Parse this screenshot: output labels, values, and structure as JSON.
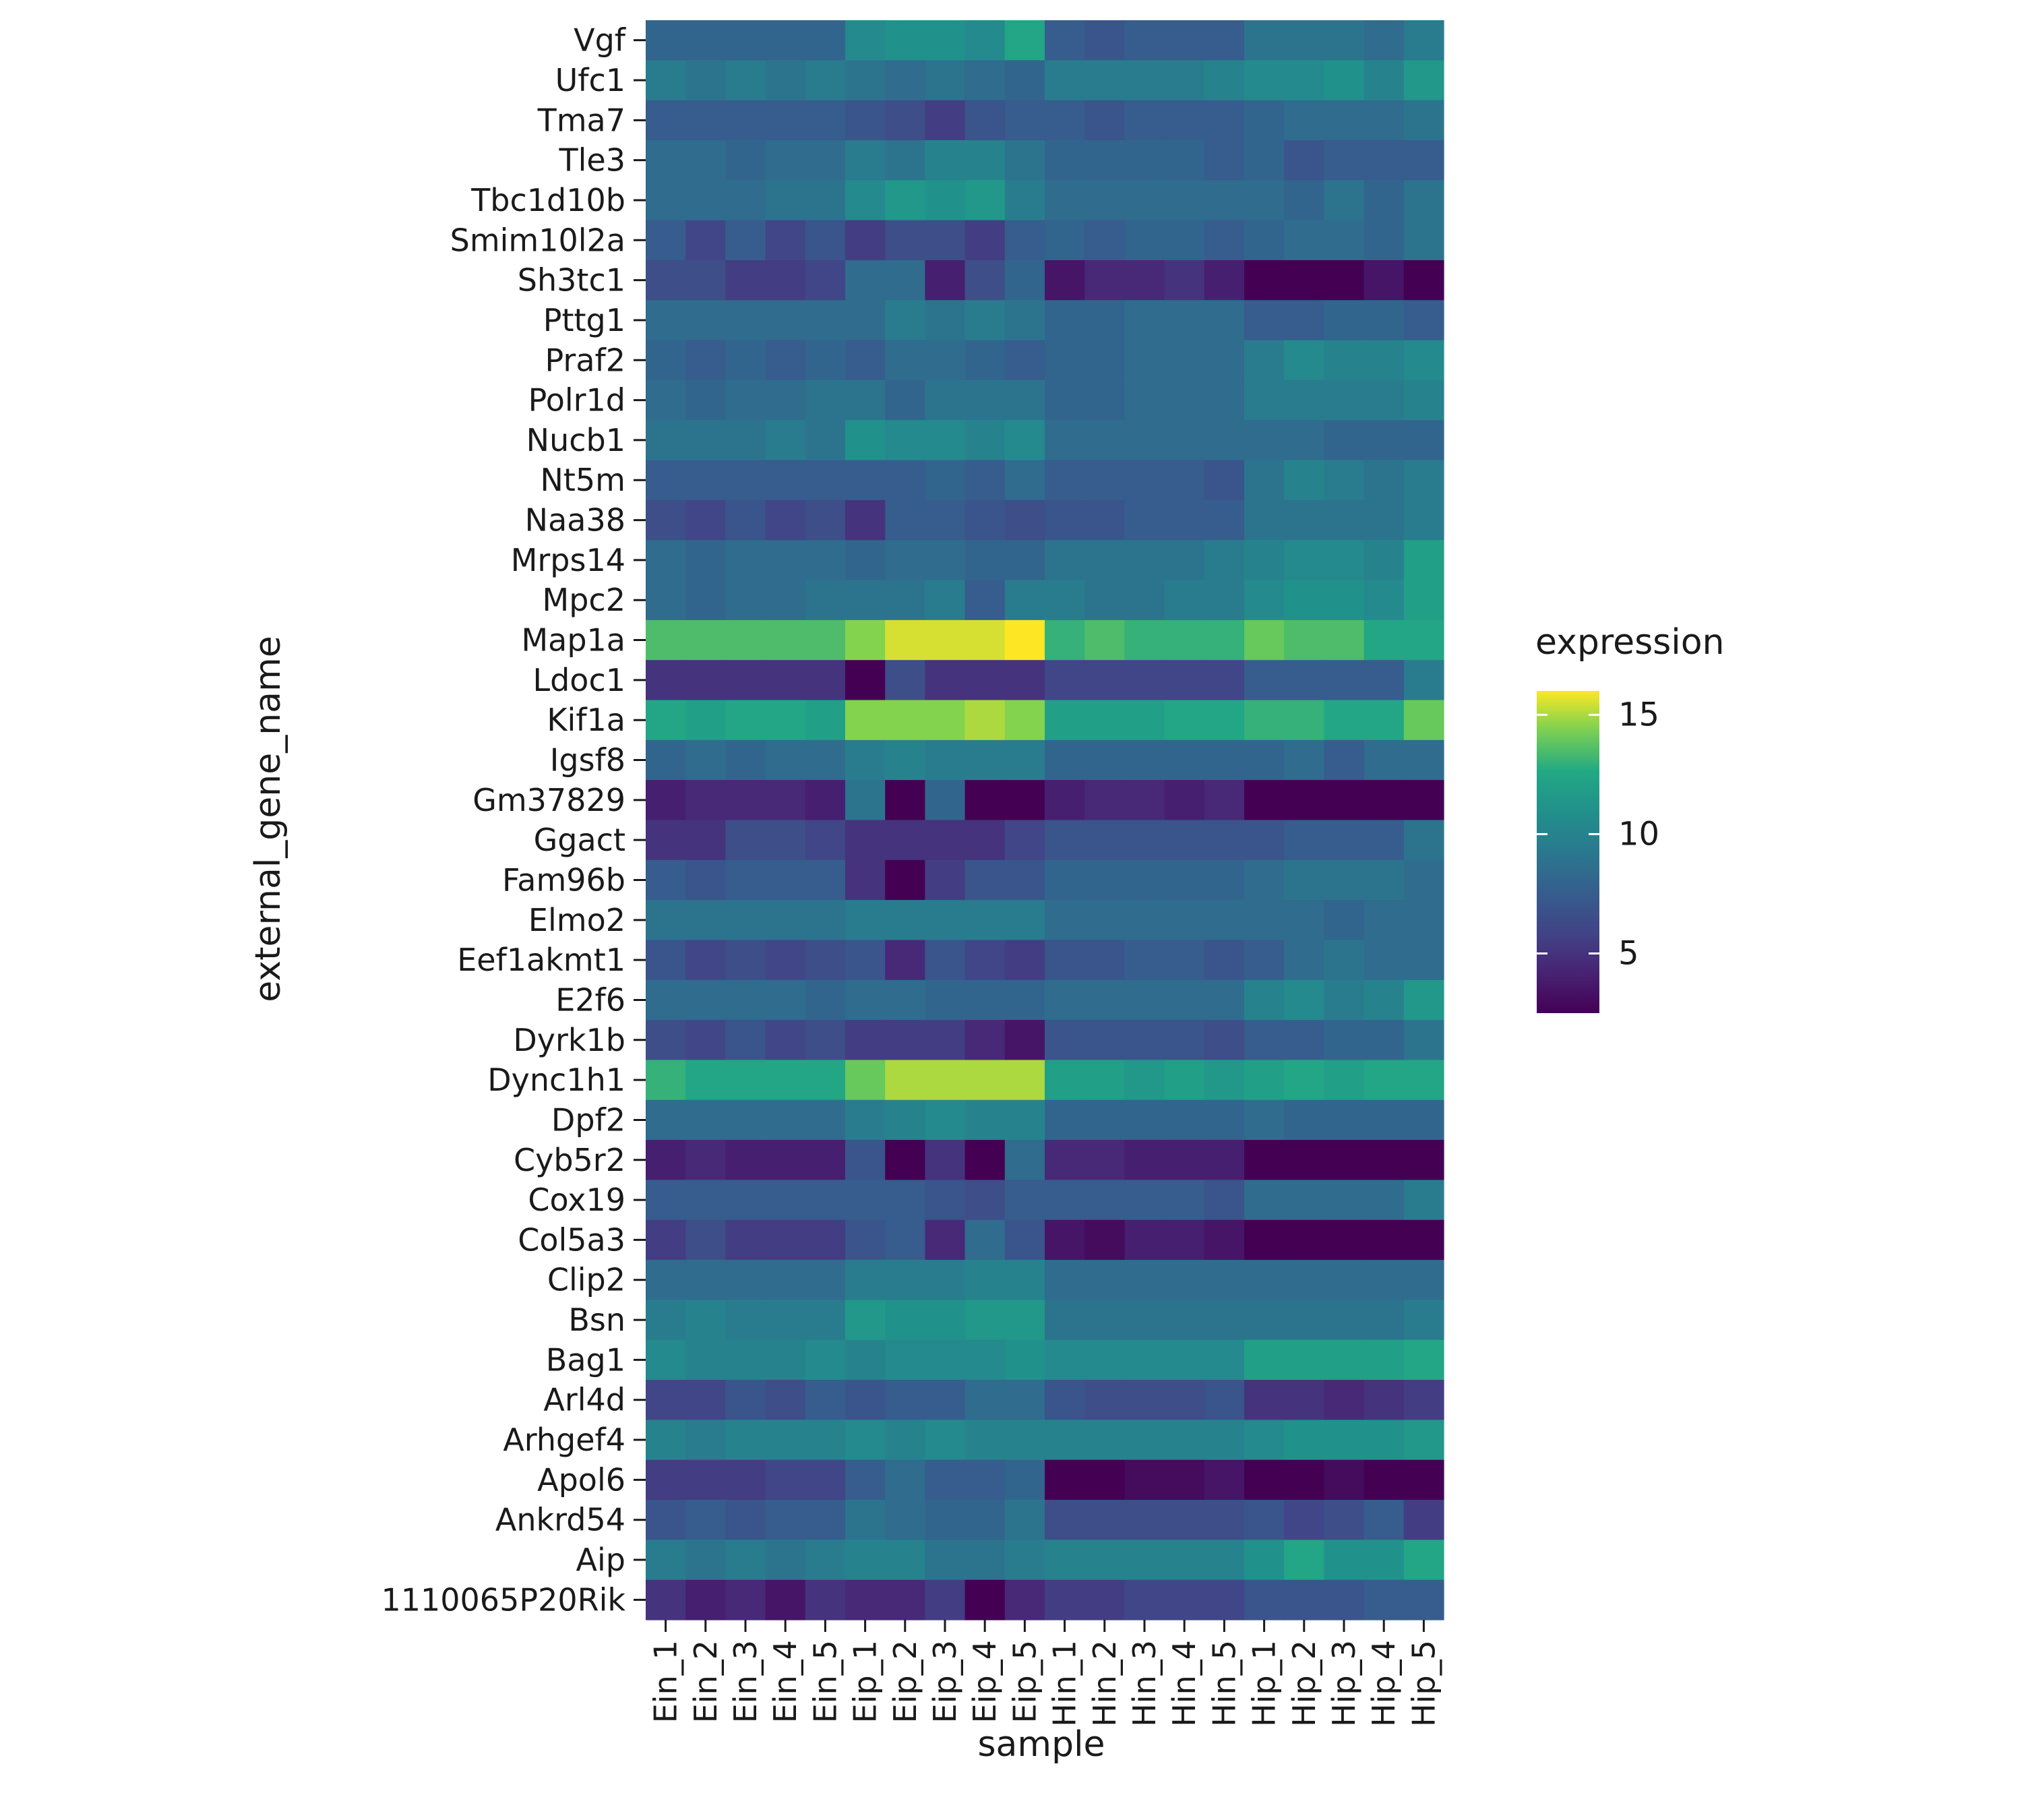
{
  "chart_data": {
    "type": "heatmap",
    "xlabel": "sample",
    "ylabel": "external_gene_name",
    "columns": [
      "Ein_1",
      "Ein_2",
      "Ein_3",
      "Ein_4",
      "Ein_5",
      "Eip_1",
      "Eip_2",
      "Eip_3",
      "Eip_4",
      "Eip_5",
      "Hin_1",
      "Hin_2",
      "Hin_3",
      "Hin_4",
      "Hin_5",
      "Hip_1",
      "Hip_2",
      "Hip_3",
      "Hip_4",
      "Hip_5"
    ],
    "rows": [
      "Vgf",
      "Ufc1",
      "Tma7",
      "Tle3",
      "Tbc1d10b",
      "Smim10l2a",
      "Sh3tc1",
      "Pttg1",
      "Praf2",
      "Polr1d",
      "Nucb1",
      "Nt5m",
      "Naa38",
      "Mrps14",
      "Mpc2",
      "Map1a",
      "Ldoc1",
      "Kif1a",
      "Igsf8",
      "Gm37829",
      "Ggact",
      "Fam96b",
      "Elmo2",
      "Eef1akmt1",
      "E2f6",
      "Dyrk1b",
      "Dync1h1",
      "Dpf2",
      "Cyb5r2",
      "Cox19",
      "Col5a3",
      "Clip2",
      "Bsn",
      "Bag1",
      "Arl4d",
      "Arhgef4",
      "Apol6",
      "Ankrd54",
      "Aip",
      "1110065P20Rik"
    ],
    "values": [
      [
        8.0,
        8.0,
        8.0,
        8.0,
        8.0,
        10.5,
        11.0,
        11.0,
        10.5,
        12.5,
        7.5,
        7.0,
        7.5,
        7.5,
        7.5,
        9.0,
        9.0,
        9.0,
        8.5,
        9.5
      ],
      [
        9.5,
        9.0,
        9.5,
        9.0,
        9.5,
        9.0,
        8.5,
        9.0,
        8.5,
        8.0,
        9.5,
        9.5,
        9.5,
        9.5,
        10.0,
        10.5,
        10.5,
        11.0,
        10.0,
        11.5
      ],
      [
        7.5,
        7.5,
        7.5,
        7.5,
        7.5,
        7.0,
        6.5,
        5.5,
        7.0,
        7.5,
        7.5,
        7.0,
        7.5,
        7.5,
        7.5,
        8.0,
        8.5,
        8.5,
        8.5,
        9.0
      ],
      [
        8.5,
        8.5,
        8.0,
        8.5,
        8.5,
        9.5,
        9.0,
        10.0,
        10.0,
        9.0,
        8.0,
        8.0,
        8.0,
        8.0,
        7.5,
        8.0,
        7.0,
        7.5,
        7.5,
        7.5
      ],
      [
        8.5,
        8.5,
        8.5,
        9.0,
        9.0,
        10.5,
        11.5,
        11.0,
        11.5,
        9.5,
        8.5,
        8.5,
        8.5,
        8.5,
        8.5,
        8.5,
        8.0,
        9.0,
        8.0,
        9.0
      ],
      [
        7.5,
        6.0,
        7.5,
        6.0,
        7.0,
        5.5,
        6.5,
        6.5,
        5.5,
        7.5,
        8.0,
        7.5,
        8.0,
        8.0,
        7.5,
        8.0,
        8.5,
        8.5,
        8.0,
        9.0
      ],
      [
        6.5,
        6.5,
        5.5,
        5.5,
        6.0,
        8.5,
        8.5,
        4.0,
        6.5,
        8.0,
        3.5,
        4.5,
        4.5,
        5.0,
        4.0,
        2.5,
        2.5,
        2.5,
        3.5,
        2.5
      ],
      [
        8.5,
        8.5,
        8.5,
        8.5,
        8.5,
        8.5,
        9.5,
        9.0,
        9.5,
        9.0,
        8.0,
        8.0,
        8.5,
        8.5,
        8.5,
        7.5,
        7.5,
        8.0,
        8.0,
        7.5
      ],
      [
        8.0,
        7.5,
        8.0,
        7.5,
        8.0,
        7.5,
        8.5,
        8.5,
        8.0,
        7.5,
        8.0,
        8.0,
        8.5,
        8.5,
        8.5,
        9.5,
        10.5,
        10.0,
        10.0,
        10.5
      ],
      [
        8.5,
        8.0,
        8.5,
        8.5,
        9.0,
        9.0,
        8.0,
        9.0,
        9.0,
        9.0,
        8.0,
        8.0,
        8.5,
        8.5,
        8.5,
        9.5,
        9.5,
        9.5,
        9.5,
        10.0
      ],
      [
        9.0,
        9.0,
        9.0,
        9.5,
        9.0,
        11.0,
        10.5,
        10.5,
        10.0,
        10.5,
        8.5,
        8.5,
        8.5,
        8.5,
        8.5,
        8.5,
        8.5,
        8.0,
        8.0,
        8.0
      ],
      [
        7.5,
        7.5,
        7.5,
        7.5,
        7.5,
        7.5,
        7.5,
        8.0,
        7.5,
        8.5,
        7.5,
        7.5,
        7.5,
        7.5,
        7.0,
        9.0,
        10.0,
        9.5,
        9.0,
        9.5
      ],
      [
        6.5,
        6.0,
        7.0,
        6.0,
        6.5,
        5.0,
        7.5,
        7.5,
        7.0,
        6.5,
        7.0,
        7.0,
        7.5,
        7.5,
        7.5,
        9.0,
        9.0,
        9.0,
        9.0,
        9.5
      ],
      [
        8.5,
        8.0,
        8.5,
        8.5,
        8.5,
        8.0,
        8.5,
        8.5,
        8.0,
        8.0,
        9.0,
        9.0,
        9.0,
        9.0,
        9.5,
        10.0,
        10.5,
        10.5,
        10.0,
        12.0
      ],
      [
        8.5,
        8.0,
        8.5,
        8.5,
        9.0,
        9.0,
        9.0,
        9.5,
        7.5,
        9.5,
        9.5,
        9.0,
        9.0,
        9.5,
        9.5,
        10.5,
        11.0,
        11.0,
        10.5,
        12.0
      ],
      [
        13.5,
        13.5,
        13.5,
        13.5,
        13.5,
        14.5,
        15.5,
        15.5,
        15.5,
        16.0,
        13.0,
        13.5,
        13.0,
        13.0,
        13.0,
        14.0,
        13.5,
        13.5,
        12.5,
        12.5
      ],
      [
        5.0,
        5.0,
        5.0,
        5.0,
        5.0,
        2.5,
        6.5,
        5.0,
        5.0,
        5.0,
        6.0,
        6.0,
        6.0,
        6.0,
        6.0,
        7.5,
        7.5,
        7.5,
        7.5,
        9.5
      ],
      [
        12.5,
        12.0,
        12.5,
        12.5,
        12.0,
        14.5,
        14.5,
        14.5,
        15.0,
        14.5,
        12.0,
        12.0,
        12.0,
        12.5,
        12.5,
        13.0,
        13.0,
        12.5,
        12.5,
        14.0
      ],
      [
        8.0,
        8.5,
        8.0,
        8.5,
        8.5,
        9.5,
        10.0,
        9.5,
        9.5,
        9.5,
        8.0,
        8.0,
        8.0,
        8.0,
        8.0,
        8.0,
        8.5,
        7.5,
        8.5,
        8.5
      ],
      [
        4.0,
        4.5,
        4.5,
        4.5,
        4.0,
        9.0,
        2.5,
        8.0,
        2.5,
        2.5,
        4.0,
        4.5,
        4.5,
        4.0,
        4.5,
        2.5,
        2.5,
        2.5,
        2.5,
        2.5
      ],
      [
        5.0,
        5.0,
        6.5,
        6.5,
        6.0,
        5.0,
        5.0,
        5.0,
        5.0,
        6.0,
        7.0,
        7.0,
        7.0,
        7.0,
        7.0,
        7.0,
        7.5,
        7.5,
        7.5,
        9.0
      ],
      [
        7.5,
        7.0,
        7.5,
        7.5,
        7.5,
        5.0,
        2.5,
        5.5,
        7.0,
        7.0,
        8.0,
        8.0,
        8.0,
        8.0,
        8.0,
        8.5,
        9.0,
        9.0,
        9.0,
        8.5
      ],
      [
        9.0,
        9.0,
        9.0,
        9.0,
        9.0,
        9.5,
        9.5,
        9.5,
        9.5,
        9.5,
        8.5,
        8.5,
        8.5,
        8.5,
        8.5,
        8.5,
        8.5,
        8.0,
        8.5,
        8.5
      ],
      [
        7.0,
        6.0,
        6.5,
        6.0,
        6.5,
        7.0,
        4.5,
        7.0,
        6.0,
        5.5,
        7.0,
        7.0,
        7.5,
        7.5,
        7.0,
        7.5,
        8.5,
        9.0,
        8.5,
        8.5
      ],
      [
        8.5,
        8.5,
        8.5,
        8.5,
        8.0,
        8.5,
        8.5,
        8.0,
        8.0,
        8.0,
        8.5,
        8.5,
        8.5,
        8.5,
        8.5,
        10.0,
        10.5,
        9.5,
        10.0,
        11.5
      ],
      [
        6.5,
        6.0,
        7.0,
        6.0,
        6.5,
        5.5,
        5.5,
        5.5,
        4.5,
        3.5,
        7.0,
        7.0,
        7.0,
        7.0,
        6.5,
        7.5,
        7.5,
        8.0,
        8.0,
        9.0
      ],
      [
        13.0,
        12.5,
        12.5,
        12.5,
        12.5,
        14.0,
        15.0,
        15.0,
        15.0,
        15.0,
        12.0,
        12.0,
        11.5,
        12.0,
        11.5,
        12.0,
        12.5,
        12.0,
        12.5,
        12.5
      ],
      [
        8.5,
        8.5,
        8.5,
        8.5,
        8.5,
        9.5,
        10.0,
        10.5,
        10.0,
        10.0,
        8.0,
        8.0,
        8.0,
        8.0,
        8.0,
        8.5,
        8.0,
        8.0,
        8.0,
        8.0
      ],
      [
        4.0,
        4.5,
        4.0,
        4.0,
        4.0,
        7.0,
        2.5,
        5.0,
        2.5,
        8.5,
        4.5,
        4.5,
        4.0,
        4.0,
        4.0,
        2.5,
        2.5,
        2.5,
        2.5,
        2.5
      ],
      [
        7.5,
        7.5,
        7.5,
        7.5,
        7.5,
        7.5,
        7.5,
        7.0,
        6.5,
        7.5,
        7.5,
        7.5,
        7.5,
        7.5,
        7.0,
        8.5,
        8.5,
        8.5,
        8.5,
        9.5
      ],
      [
        5.5,
        6.5,
        5.5,
        5.5,
        5.5,
        7.0,
        7.5,
        4.5,
        8.5,
        7.0,
        3.5,
        3.0,
        4.0,
        4.0,
        3.5,
        2.5,
        2.5,
        2.5,
        2.5,
        2.5
      ],
      [
        8.5,
        8.5,
        8.5,
        8.5,
        8.5,
        9.5,
        9.5,
        9.5,
        10.0,
        10.0,
        8.5,
        8.5,
        8.5,
        8.5,
        8.5,
        8.5,
        8.5,
        8.5,
        8.5,
        8.5
      ],
      [
        9.5,
        10.0,
        9.5,
        9.5,
        9.5,
        11.5,
        11.0,
        11.0,
        11.5,
        11.5,
        9.0,
        9.0,
        9.0,
        9.0,
        9.0,
        9.0,
        9.0,
        9.0,
        9.0,
        9.5
      ],
      [
        10.5,
        10.0,
        10.0,
        10.0,
        10.5,
        10.0,
        10.5,
        10.5,
        10.5,
        11.0,
        10.5,
        10.5,
        10.5,
        10.5,
        10.5,
        12.0,
        12.0,
        12.0,
        12.0,
        12.5
      ],
      [
        6.0,
        6.0,
        7.0,
        6.5,
        7.5,
        7.0,
        7.5,
        7.5,
        8.5,
        8.5,
        7.0,
        6.5,
        6.5,
        6.5,
        7.0,
        5.0,
        5.0,
        4.5,
        5.0,
        5.5
      ],
      [
        10.0,
        9.5,
        10.0,
        10.0,
        10.0,
        10.5,
        10.0,
        10.5,
        10.0,
        10.0,
        10.0,
        10.0,
        10.0,
        10.0,
        10.0,
        10.5,
        11.0,
        11.0,
        11.0,
        11.5
      ],
      [
        5.5,
        5.5,
        5.5,
        6.0,
        6.0,
        7.5,
        8.5,
        7.5,
        7.5,
        8.0,
        2.5,
        2.5,
        3.0,
        3.0,
        3.5,
        2.5,
        2.5,
        3.0,
        2.5,
        2.5
      ],
      [
        7.0,
        7.5,
        7.0,
        7.5,
        7.5,
        9.0,
        8.5,
        8.0,
        8.0,
        9.0,
        6.5,
        6.5,
        6.5,
        6.5,
        6.5,
        7.0,
        6.0,
        6.5,
        7.5,
        5.5
      ],
      [
        9.5,
        9.0,
        9.5,
        9.0,
        9.5,
        10.0,
        10.0,
        9.0,
        9.0,
        9.5,
        10.0,
        10.0,
        10.0,
        10.0,
        10.0,
        11.0,
        12.5,
        11.0,
        11.0,
        12.5
      ],
      [
        5.0,
        4.0,
        4.5,
        3.5,
        5.0,
        4.5,
        4.5,
        5.5,
        2.5,
        4.5,
        5.5,
        5.5,
        6.0,
        6.0,
        6.0,
        7.0,
        7.0,
        7.0,
        7.5,
        7.5
      ]
    ],
    "colorbar": {
      "title": "expression",
      "min": 2.5,
      "max": 16.0,
      "ticks": [
        5,
        10,
        15
      ],
      "colormap": "viridis"
    },
    "grid": false,
    "legend_position": "right"
  }
}
